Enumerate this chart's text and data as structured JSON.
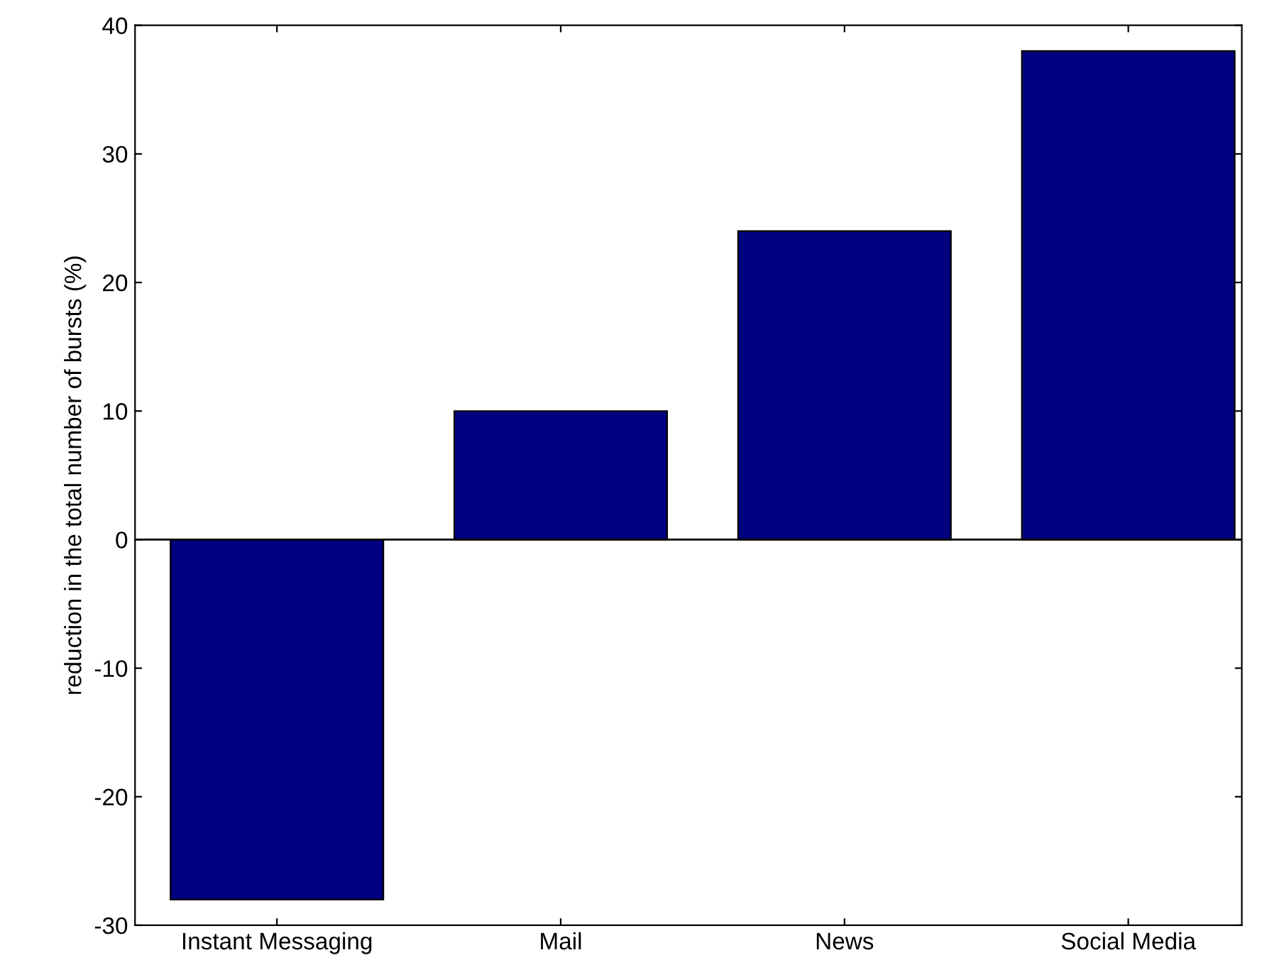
{
  "chart_data": {
    "type": "bar",
    "ylabel": "reduction in the total number of bursts (%)",
    "categories": [
      "Instant Messaging",
      "Mail",
      "News",
      "Social Media"
    ],
    "values": [
      -28,
      10,
      24,
      38
    ],
    "color": "#000080",
    "ylim": [
      -30,
      40
    ],
    "yticks": [
      -30,
      -20,
      -10,
      0,
      10,
      20,
      30,
      40
    ],
    "grid": false,
    "legend": false,
    "ref_lines": [
      {
        "axis": "y",
        "value": 0,
        "color": "#000000"
      }
    ]
  }
}
